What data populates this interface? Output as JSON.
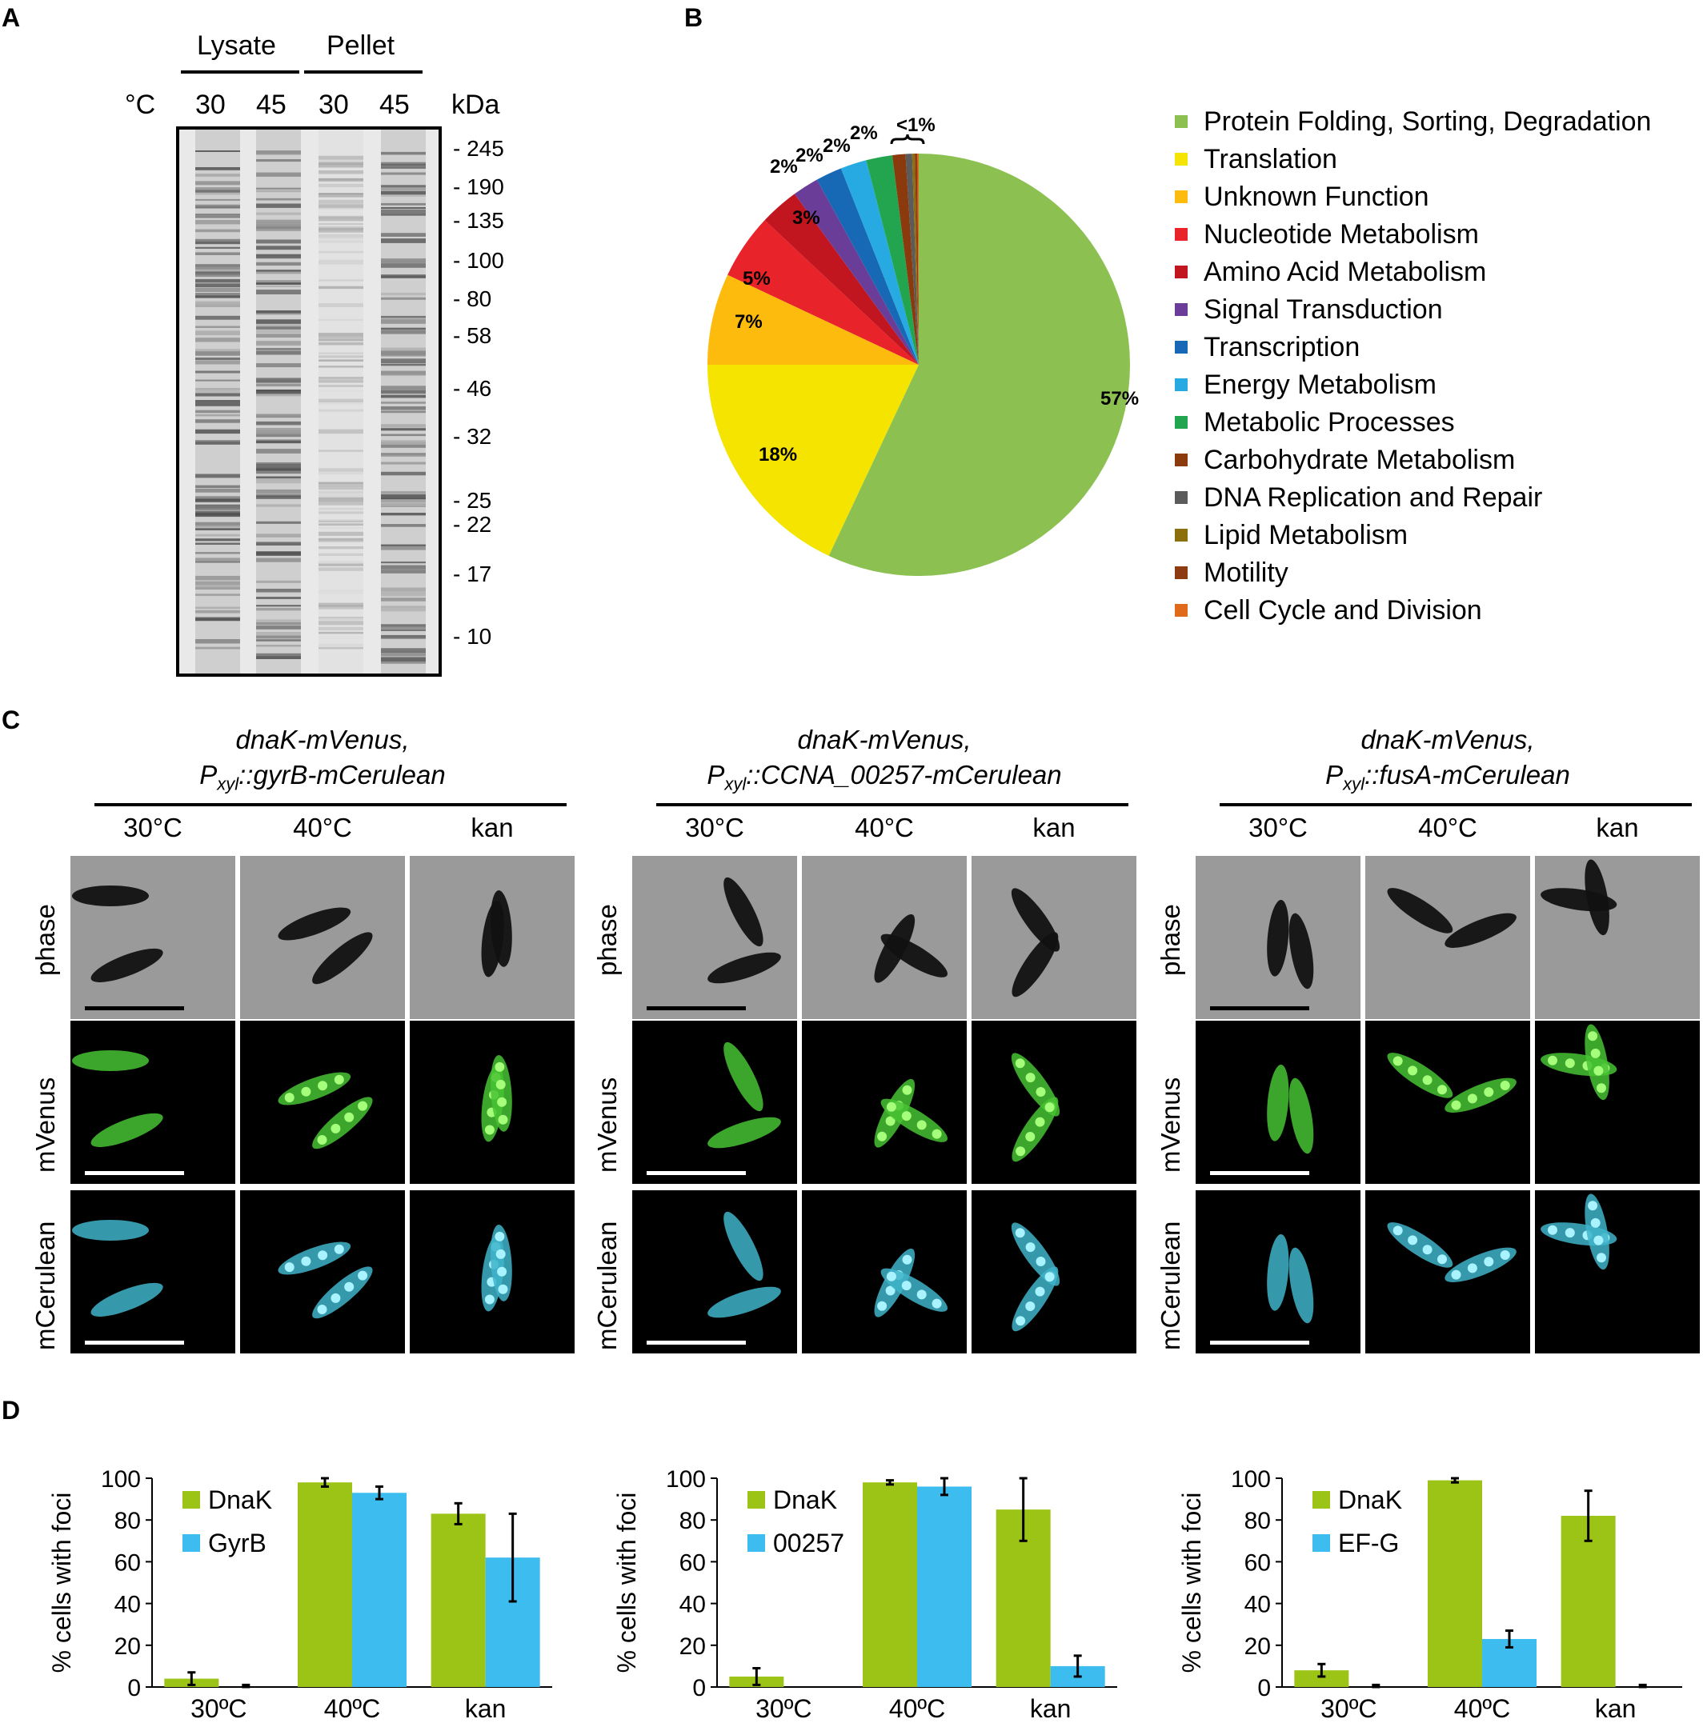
{
  "panels": {
    "a": "A",
    "b": "B",
    "c": "C",
    "d": "D"
  },
  "gel": {
    "group_lysate": "Lysate",
    "group_pellet": "Pellet",
    "temp_unit": "°C",
    "kda_label": "kDa",
    "lanes": [
      "30",
      "45",
      "30",
      "45"
    ],
    "markers": [
      "- 245",
      "- 190",
      "- 135",
      "- 100",
      "- 80",
      "- 58",
      "- 46",
      "- 32",
      "- 25",
      "- 22",
      "- 17",
      "- 10"
    ]
  },
  "pie": {
    "slice_labels": [
      "57%",
      "18%",
      "7%",
      "5%",
      "3%",
      "2%",
      "2%",
      "2%",
      "2%",
      "<1%"
    ],
    "legend": [
      {
        "label": "Protein Folding, Sorting, Degradation",
        "color": "#8cc152"
      },
      {
        "label": "Translation",
        "color": "#f5e400"
      },
      {
        "label": "Unknown Function",
        "color": "#fdbb0d"
      },
      {
        "label": "Nucleotide Metabolism",
        "color": "#e8232a"
      },
      {
        "label": "Amino Acid Metabolism",
        "color": "#c1151f"
      },
      {
        "label": "Signal Transduction",
        "color": "#6a3e98"
      },
      {
        "label": "Transcription",
        "color": "#1769b5"
      },
      {
        "label": "Energy Metabolism",
        "color": "#27aae1"
      },
      {
        "label": "Metabolic Processes",
        "color": "#23a54f"
      },
      {
        "label": "Carbohydrate Metabolism",
        "color": "#8b3a0e"
      },
      {
        "label": "DNA Replication and Repair",
        "color": "#5b5b5b"
      },
      {
        "label": "Lipid Metabolism",
        "color": "#8a6f0c"
      },
      {
        "label": "Motility",
        "color": "#8f3b12"
      },
      {
        "label": "Cell Cycle and Division",
        "color": "#e06a1b"
      }
    ]
  },
  "micro": {
    "conditions": [
      "30°C",
      "40°C",
      "kan"
    ],
    "rows": [
      "phase",
      "mVenus",
      "mCerulean"
    ],
    "strains": [
      {
        "line1": "dnaK-mVenus,",
        "prefix": "P",
        "sub": "xyl",
        "suffix": "::gyrB-mCerulean"
      },
      {
        "line1": "dnaK-mVenus,",
        "prefix": "P",
        "sub": "xyl",
        "suffix": "::CCNA_00257-mCerulean"
      },
      {
        "line1": "dnaK-mVenus,",
        "prefix": "P",
        "sub": "xyl",
        "suffix": "::fusA-mCerulean"
      }
    ]
  },
  "chart_data": [
    {
      "type": "bar",
      "ylabel": "% cells with foci",
      "ylim": [
        0,
        100
      ],
      "yticks": [
        0,
        20,
        40,
        60,
        80,
        100
      ],
      "categories": [
        "30ºC",
        "40ºC",
        "kan"
      ],
      "series": [
        {
          "name": "DnaK",
          "color": "#9cc416",
          "values": [
            4,
            98,
            83
          ],
          "errors": [
            3,
            2,
            5
          ]
        },
        {
          "name": "GyrB",
          "color": "#3dbdef",
          "values": [
            0,
            93,
            62
          ],
          "errors": [
            1,
            3,
            21
          ]
        }
      ]
    },
    {
      "type": "bar",
      "ylabel": "% cells with foci",
      "ylim": [
        0,
        100
      ],
      "yticks": [
        0,
        20,
        40,
        60,
        80,
        100
      ],
      "categories": [
        "30ºC",
        "40ºC",
        "kan"
      ],
      "series": [
        {
          "name": "DnaK",
          "color": "#9cc416",
          "values": [
            5,
            98,
            85
          ],
          "errors": [
            4,
            1,
            15
          ]
        },
        {
          "name": "00257",
          "color": "#3dbdef",
          "values": [
            0,
            96,
            10
          ],
          "errors": [
            0,
            4,
            5
          ]
        }
      ]
    },
    {
      "type": "bar",
      "ylabel": "% cells with foci",
      "ylim": [
        0,
        100
      ],
      "yticks": [
        0,
        20,
        40,
        60,
        80,
        100
      ],
      "categories": [
        "30ºC",
        "40ºC",
        "kan"
      ],
      "series": [
        {
          "name": "DnaK",
          "color": "#9cc416",
          "values": [
            8,
            99,
            82
          ],
          "errors": [
            3,
            1,
            12
          ]
        },
        {
          "name": "EF-G",
          "color": "#3dbdef",
          "values": [
            0,
            23,
            0
          ],
          "errors": [
            1,
            4,
            1
          ]
        }
      ]
    }
  ]
}
